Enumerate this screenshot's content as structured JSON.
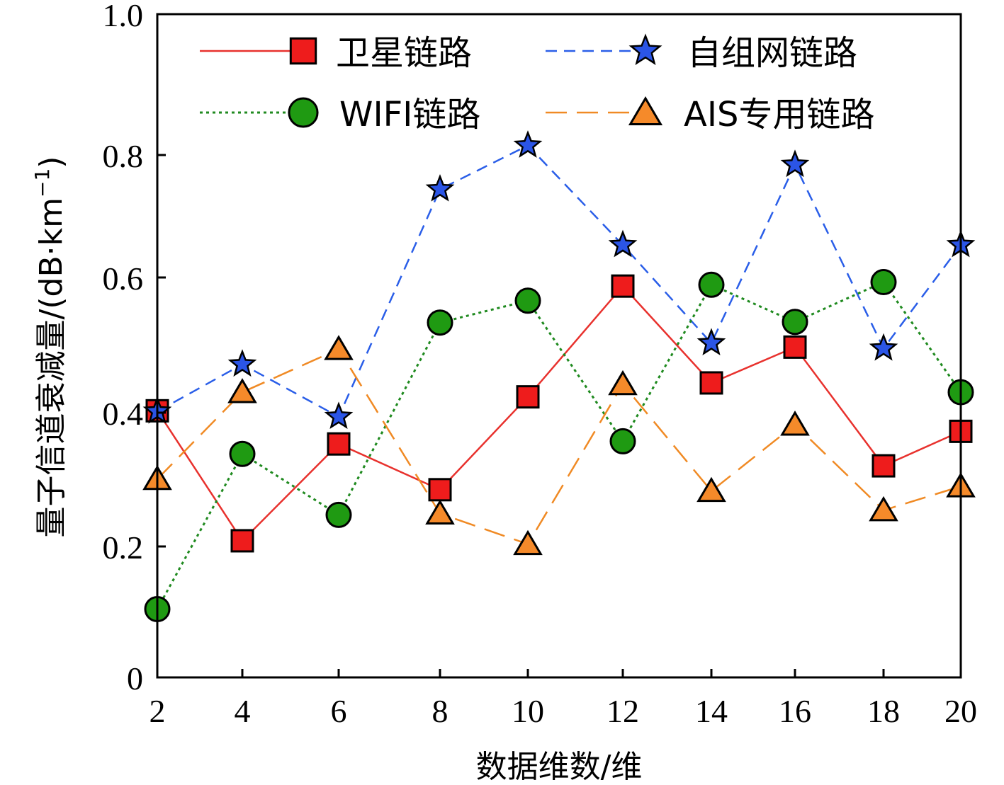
{
  "chart_data": {
    "type": "line",
    "title": "",
    "xlabel": "数据维数/维",
    "ylabel_main": "量子信道衰减量/(dB·km",
    "ylabel_sup": "−1",
    "ylabel_close": ")",
    "xlim": [
      2,
      20
    ],
    "ylim": [
      0,
      1.0
    ],
    "x": [
      2,
      4,
      6,
      8,
      10,
      12,
      14,
      16,
      18,
      20
    ],
    "x_tick_labels": [
      "2",
      "4",
      "6",
      "8",
      "10",
      "12",
      "14",
      "16",
      "18",
      "20"
    ],
    "y_ticks": [
      0,
      0.2,
      0.4,
      0.6,
      0.8,
      1.0
    ],
    "y_tick_labels": [
      "0",
      "0.2",
      "0.4",
      "0.6",
      "0.8",
      "1.0"
    ],
    "legend_position": "top",
    "series": [
      {
        "name": "卫星链路",
        "marker": "square",
        "line": "solid",
        "color": "#e8312d",
        "marker_fill": "#ee1c1c",
        "values": [
          0.402,
          0.206,
          0.352,
          0.283,
          0.423,
          0.59,
          0.444,
          0.498,
          0.319,
          0.371
        ]
      },
      {
        "name": "自组网链路",
        "marker": "star",
        "line": "dashed",
        "color": "#2a5ee8",
        "marker_fill": "#2b55e6",
        "values": [
          0.401,
          0.472,
          0.393,
          0.736,
          0.802,
          0.652,
          0.504,
          0.773,
          0.496,
          0.652
        ]
      },
      {
        "name": "WIFI链路",
        "marker": "circle",
        "line": "dotted",
        "color": "#1f8a1f",
        "marker_fill": "#1f9a12",
        "values": [
          0.103,
          0.337,
          0.245,
          0.535,
          0.568,
          0.356,
          0.592,
          0.536,
          0.596,
          0.43
        ]
      },
      {
        "name": "AIS专用链路",
        "marker": "triangle",
        "line": "longdash",
        "color": "#f08a24",
        "marker_fill": "#f58a2a",
        "values": [
          0.299,
          0.43,
          0.495,
          0.247,
          0.201,
          0.442,
          0.281,
          0.381,
          0.252,
          0.288
        ]
      }
    ]
  }
}
